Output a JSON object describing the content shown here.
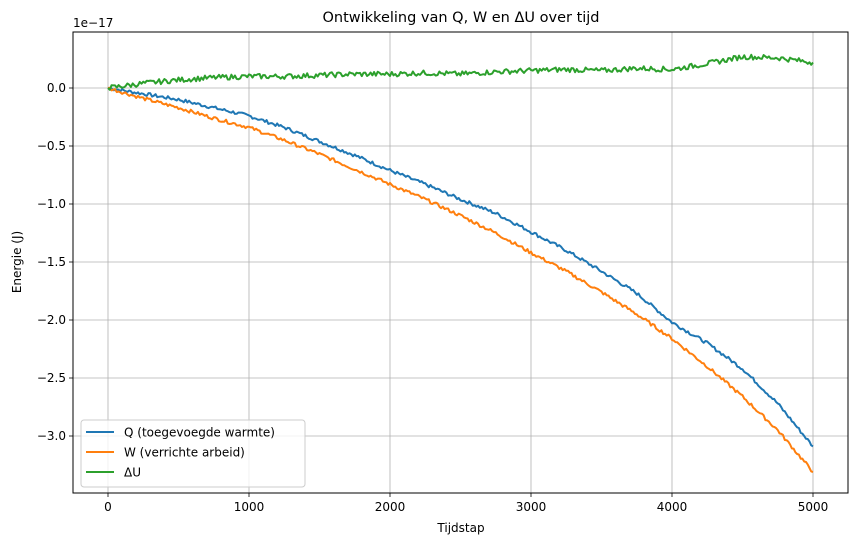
{
  "chart_data": {
    "type": "line",
    "title": "Ontwikkeling van Q, W en ΔU over tijd",
    "xlabel": "Tijdstap",
    "ylabel": "Energie (J)",
    "y_offset_label": "1e−17",
    "y_scale": 1e-17,
    "xlim": [
      -250,
      5250
    ],
    "ylim": [
      -3.45,
      0.45
    ],
    "x_ticks": [
      0,
      1000,
      2000,
      3000,
      4000,
      5000
    ],
    "x_tick_labels": [
      "0",
      "1000",
      "2000",
      "3000",
      "4000",
      "5000"
    ],
    "y_ticks": [
      0.0,
      -0.5,
      -1.0,
      -1.5,
      -2.0,
      -2.5,
      -3.0
    ],
    "y_tick_labels": [
      "0.0",
      "−0.5",
      "−1.0",
      "−1.5",
      "−2.0",
      "−2.5",
      "−3.0"
    ],
    "grid": true,
    "legend_position": "lower left",
    "x": [
      0,
      250,
      500,
      750,
      1000,
      1250,
      1500,
      1750,
      2000,
      2250,
      2500,
      2750,
      3000,
      3250,
      3500,
      3750,
      4000,
      4250,
      4500,
      4750,
      5000
    ],
    "series": [
      {
        "name": "Q (toegevoegde warmte)",
        "color": "#1f77b4",
        "values": [
          0.0,
          -0.05,
          -0.1,
          -0.17,
          -0.24,
          -0.34,
          -0.46,
          -0.58,
          -0.71,
          -0.83,
          -0.96,
          -1.08,
          -1.24,
          -1.4,
          -1.58,
          -1.77,
          -2.02,
          -2.2,
          -2.42,
          -2.72,
          -3.09
        ]
      },
      {
        "name": "W (verrichte arbeid)",
        "color": "#ff7f0e",
        "values": [
          0.0,
          -0.09,
          -0.17,
          -0.26,
          -0.34,
          -0.45,
          -0.57,
          -0.7,
          -0.83,
          -0.96,
          -1.1,
          -1.25,
          -1.42,
          -1.58,
          -1.76,
          -1.95,
          -2.16,
          -2.4,
          -2.66,
          -2.95,
          -3.31
        ]
      },
      {
        "name": "ΔU",
        "color": "#2ca02c",
        "values": [
          0.0,
          0.04,
          0.07,
          0.09,
          0.1,
          0.1,
          0.11,
          0.12,
          0.12,
          0.13,
          0.12,
          0.14,
          0.15,
          0.16,
          0.15,
          0.17,
          0.16,
          0.21,
          0.27,
          0.26,
          0.22
        ]
      }
    ]
  }
}
